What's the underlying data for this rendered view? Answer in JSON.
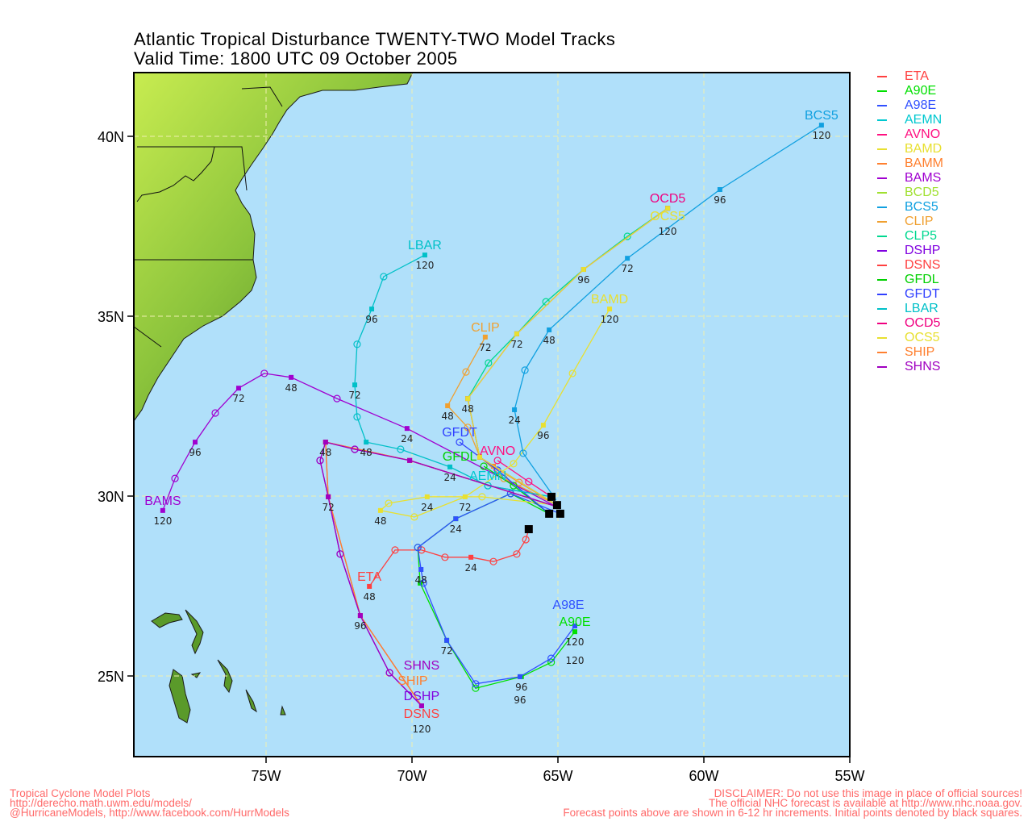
{
  "title": {
    "line1": "Atlantic Tropical Disturbance TWENTY-TWO Model Tracks",
    "line2": "Valid Time: 1800 UTC 09 October 2005"
  },
  "footer": {
    "left": [
      "Tropical Cyclone Model Plots",
      "http://derecho.math.uwm.edu/models/",
      "@HurricaneModels, http://www.facebook.com/HurrModels"
    ],
    "right": [
      "DISCLAIMER: Do not use this image in place of official sources!",
      "The official NHC forecast is available at http://www.nhc.noaa.gov.",
      "Forecast points above are shown in 6-12 hr increments. Initial points denoted by black squares."
    ]
  },
  "colors": {
    "ocean": "#b0e0fa",
    "grid": "#f0f0b0",
    "land": "#7cb838",
    "footer": "#ff6a6a"
  },
  "chart_data": {
    "type": "map-tracks",
    "xlim": [
      -79.5,
      -55
    ],
    "ylim": [
      22.8,
      41.8
    ],
    "grid": true,
    "legend": "right",
    "x_ticks": [
      {
        "v": -75,
        "label": "75W"
      },
      {
        "v": -70,
        "label": "70W"
      },
      {
        "v": -65,
        "label": "65W"
      },
      {
        "v": -60,
        "label": "60W"
      },
      {
        "v": -55,
        "label": "55W"
      }
    ],
    "y_ticks": [
      {
        "v": 40,
        "label": "40N"
      },
      {
        "v": 35,
        "label": "35N"
      },
      {
        "v": 30,
        "label": "30N"
      },
      {
        "v": 25,
        "label": "25N"
      }
    ],
    "initial_points": [
      [
        29.98,
        -65.22
      ],
      [
        29.75,
        -65.03
      ],
      [
        29.51,
        -64.92
      ],
      [
        29.51,
        -65.3
      ],
      [
        29.08,
        -66.0
      ]
    ],
    "tracks": [
      {
        "name": "ETA",
        "color": "#ff4040",
        "show_name": true,
        "hour_labels": [
          24,
          48
        ],
        "points": [
          [
            0,
            29.08,
            -66.0
          ],
          [
            6,
            28.79,
            -66.1
          ],
          [
            12,
            28.39,
            -66.41
          ],
          [
            18,
            28.18,
            -67.21
          ],
          [
            24,
            28.3,
            -67.98
          ],
          [
            30,
            28.3,
            -68.87
          ],
          [
            36,
            28.5,
            -69.67
          ],
          [
            42,
            28.5,
            -70.58
          ],
          [
            48,
            27.49,
            -71.46
          ]
        ]
      },
      {
        "name": "A90E",
        "color": "#00e000",
        "show_name": true,
        "hour_labels": [
          96,
          120
        ],
        "points": [
          [
            0,
            29.51,
            -65.3
          ],
          [
            12,
            30.07,
            -66.62
          ],
          [
            24,
            29.37,
            -68.5
          ],
          [
            36,
            28.57,
            -69.8
          ],
          [
            48,
            27.58,
            -69.72
          ],
          [
            72,
            25.99,
            -68.81
          ],
          [
            84,
            24.66,
            -67.82
          ],
          [
            96,
            24.98,
            -66.25
          ],
          [
            108,
            25.38,
            -65.23
          ],
          [
            120,
            26.23,
            -64.42
          ]
        ]
      },
      {
        "name": "A98E",
        "color": "#3050ff",
        "show_name": true,
        "hour_labels": [
          24,
          48,
          72,
          96,
          120
        ],
        "points": [
          [
            0,
            29.51,
            -64.92
          ],
          [
            12,
            30.07,
            -66.62
          ],
          [
            24,
            29.37,
            -68.5
          ],
          [
            36,
            28.57,
            -69.8
          ],
          [
            48,
            27.96,
            -69.69
          ],
          [
            60,
            27.58,
            -69.61
          ],
          [
            72,
            25.99,
            -68.81
          ],
          [
            84,
            24.78,
            -67.82
          ],
          [
            96,
            24.98,
            -66.3
          ],
          [
            108,
            25.49,
            -65.23
          ],
          [
            120,
            26.39,
            -64.42
          ]
        ]
      },
      {
        "name": "AEMN",
        "color": "#00c8d0",
        "show_name": true,
        "hour_labels": [],
        "points": [
          [
            0,
            29.98,
            -65.22
          ],
          [
            12,
            30.29,
            -67.4
          ]
        ]
      },
      {
        "name": "AVNO",
        "color": "#ff1080",
        "show_name": true,
        "hour_labels": [],
        "points": [
          [
            0,
            29.98,
            -65.22
          ],
          [
            6,
            30.4,
            -66.0
          ],
          [
            12,
            30.99,
            -67.07
          ]
        ]
      },
      {
        "name": "BAMD",
        "color": "#e8e030",
        "show_name": true,
        "hour_labels": [
          24,
          48,
          72,
          96,
          120
        ],
        "points": [
          [
            0,
            29.75,
            -65.03
          ],
          [
            12,
            29.98,
            -67.6
          ],
          [
            24,
            29.98,
            -69.48
          ],
          [
            36,
            29.8,
            -70.8
          ],
          [
            48,
            29.6,
            -71.08
          ],
          [
            60,
            29.42,
            -69.92
          ],
          [
            72,
            29.98,
            -68.18
          ],
          [
            84,
            30.9,
            -66.52
          ],
          [
            96,
            31.97,
            -65.5
          ],
          [
            108,
            33.41,
            -64.5
          ],
          [
            120,
            35.2,
            -63.23
          ]
        ]
      },
      {
        "name": "BAMM",
        "color": "#ff8030",
        "show_name": false,
        "hour_labels": [],
        "points": [
          [
            0,
            29.75,
            -65.03
          ],
          [
            12,
            30.38,
            -66.33
          ],
          [
            24,
            30.83,
            -67.21
          ]
        ]
      },
      {
        "name": "BAMS",
        "color": "#a000d0",
        "show_name": true,
        "hour_labels": [
          24,
          48,
          72,
          96,
          120
        ],
        "points": [
          [
            0,
            29.71,
            -65.06
          ],
          [
            24,
            31.88,
            -70.17
          ],
          [
            36,
            32.71,
            -72.57
          ],
          [
            48,
            33.3,
            -74.14
          ],
          [
            60,
            33.41,
            -75.06
          ],
          [
            72,
            33.0,
            -75.94
          ],
          [
            84,
            32.31,
            -76.74
          ],
          [
            96,
            31.5,
            -77.43
          ],
          [
            108,
            30.49,
            -78.12
          ],
          [
            120,
            29.6,
            -78.54
          ]
        ]
      },
      {
        "name": "BCD5",
        "color": "#a0e030",
        "show_name": false,
        "hour_labels": [],
        "points": []
      },
      {
        "name": "BCS5",
        "color": "#10a0e0",
        "show_name": true,
        "hour_labels": [
          24,
          48,
          72,
          96,
          120
        ],
        "points": [
          [
            0,
            29.89,
            -65.06
          ],
          [
            12,
            31.19,
            -66.19
          ],
          [
            24,
            32.4,
            -66.49
          ],
          [
            36,
            33.5,
            -66.13
          ],
          [
            48,
            34.62,
            -65.3
          ],
          [
            72,
            36.61,
            -62.62
          ],
          [
            96,
            38.52,
            -59.45
          ],
          [
            120,
            40.31,
            -55.97
          ]
        ]
      },
      {
        "name": "CLIP",
        "color": "#f0a030",
        "show_name": true,
        "hour_labels": [
          48,
          72
        ],
        "points": [
          [
            0,
            29.75,
            -65.03
          ],
          [
            12,
            30.49,
            -66.85
          ],
          [
            24,
            31.1,
            -67.68
          ],
          [
            36,
            31.91,
            -68.09
          ],
          [
            48,
            32.51,
            -68.78
          ],
          [
            60,
            33.45,
            -68.15
          ],
          [
            72,
            34.42,
            -67.49
          ]
        ]
      },
      {
        "name": "CLP5",
        "color": "#00d890",
        "show_name": false,
        "hour_labels": [],
        "points": [
          [
            0,
            29.75,
            -65.03
          ],
          [
            24,
            31.08,
            -67.68
          ],
          [
            48,
            32.71,
            -68.09
          ],
          [
            60,
            33.7,
            -67.38
          ],
          [
            72,
            34.51,
            -66.41
          ],
          [
            84,
            35.4,
            -65.41
          ],
          [
            96,
            36.3,
            -64.12
          ],
          [
            108,
            37.22,
            -62.62
          ],
          [
            120,
            38.0,
            -61.24
          ]
        ]
      },
      {
        "name": "DSHP",
        "color": "#8000e0",
        "show_name": true,
        "hour_labels": [],
        "points": [
          [
            0,
            29.71,
            -65.06
          ],
          [
            24,
            30.99,
            -70.08
          ],
          [
            36,
            31.3,
            -71.96
          ],
          [
            48,
            31.5,
            -72.96
          ],
          [
            60,
            30.99,
            -73.15
          ],
          [
            72,
            29.98,
            -72.87
          ],
          [
            84,
            28.39,
            -72.46
          ],
          [
            96,
            26.68,
            -71.77
          ],
          [
            108,
            25.09,
            -70.77
          ],
          [
            120,
            24.17,
            -69.67
          ]
        ]
      },
      {
        "name": "DSNS",
        "color": "#ff4040",
        "show_name": true,
        "hour_labels": [],
        "points": [
          [
            0,
            29.71,
            -65.06
          ],
          [
            24,
            30.99,
            -70.08
          ],
          [
            48,
            31.5,
            -72.96
          ],
          [
            72,
            29.98,
            -72.87
          ],
          [
            96,
            26.68,
            -71.77
          ],
          [
            120,
            24.17,
            -69.67
          ]
        ]
      },
      {
        "name": "GFDL",
        "color": "#00d000",
        "show_name": true,
        "hour_labels": [],
        "points": [
          [
            0,
            29.51,
            -65.3
          ],
          [
            6,
            30.29,
            -66.52
          ],
          [
            12,
            30.83,
            -67.54
          ]
        ]
      },
      {
        "name": "GFDT",
        "color": "#3040ff",
        "show_name": true,
        "hour_labels": [],
        "points": [
          [
            0,
            29.51,
            -65.3
          ],
          [
            6,
            30.72,
            -67.07
          ],
          [
            12,
            31.5,
            -68.37
          ]
        ]
      },
      {
        "name": "LBAR",
        "color": "#00c0c8",
        "show_name": true,
        "hour_labels": [
          24,
          48,
          72,
          96,
          120
        ],
        "points": [
          [
            0,
            29.98,
            -65.22
          ],
          [
            12,
            30.29,
            -67.4
          ],
          [
            24,
            30.81,
            -68.7
          ],
          [
            36,
            31.3,
            -70.39
          ],
          [
            48,
            31.5,
            -71.57
          ],
          [
            60,
            32.2,
            -71.88
          ],
          [
            72,
            33.09,
            -71.96
          ],
          [
            84,
            34.22,
            -71.88
          ],
          [
            96,
            35.2,
            -71.38
          ],
          [
            108,
            36.1,
            -70.97
          ],
          [
            120,
            36.7,
            -69.56
          ]
        ]
      },
      {
        "name": "OCD5",
        "color": "#f00080",
        "show_name": true,
        "hour_labels": [],
        "points": [
          [
            0,
            29.75,
            -65.03
          ],
          [
            24,
            31.08,
            -67.68
          ],
          [
            48,
            32.71,
            -68.09
          ],
          [
            72,
            34.51,
            -66.41
          ],
          [
            96,
            36.3,
            -64.12
          ],
          [
            120,
            38.0,
            -61.24
          ]
        ]
      },
      {
        "name": "OCS5",
        "color": "#e8e030",
        "show_name": true,
        "hour_labels": [
          48,
          72,
          96,
          120
        ],
        "points": [
          [
            0,
            29.75,
            -65.03
          ],
          [
            24,
            31.08,
            -67.68
          ],
          [
            48,
            32.71,
            -68.09
          ],
          [
            72,
            34.51,
            -66.41
          ],
          [
            96,
            36.3,
            -64.12
          ],
          [
            120,
            38.0,
            -61.24
          ]
        ]
      },
      {
        "name": "SHIP",
        "color": "#ff8030",
        "show_name": true,
        "hour_labels": [],
        "points": [
          [
            0,
            29.71,
            -65.06
          ],
          [
            24,
            30.99,
            -70.08
          ],
          [
            48,
            31.5,
            -72.96
          ],
          [
            72,
            29.98,
            -72.87
          ],
          [
            96,
            26.68,
            -71.77
          ],
          [
            120,
            24.17,
            -69.67
          ]
        ]
      },
      {
        "name": "SHNS",
        "color": "#a000c0",
        "show_name": true,
        "hour_labels": [
          48,
          72,
          96,
          120
        ],
        "points": [
          [
            0,
            29.71,
            -65.06
          ],
          [
            24,
            30.99,
            -70.08
          ],
          [
            36,
            31.3,
            -71.96
          ],
          [
            48,
            31.5,
            -72.96
          ],
          [
            60,
            30.99,
            -73.15
          ],
          [
            72,
            29.98,
            -72.87
          ],
          [
            84,
            28.39,
            -72.46
          ],
          [
            96,
            26.68,
            -71.77
          ],
          [
            108,
            25.09,
            -70.77
          ],
          [
            120,
            24.17,
            -69.67
          ]
        ]
      }
    ]
  }
}
